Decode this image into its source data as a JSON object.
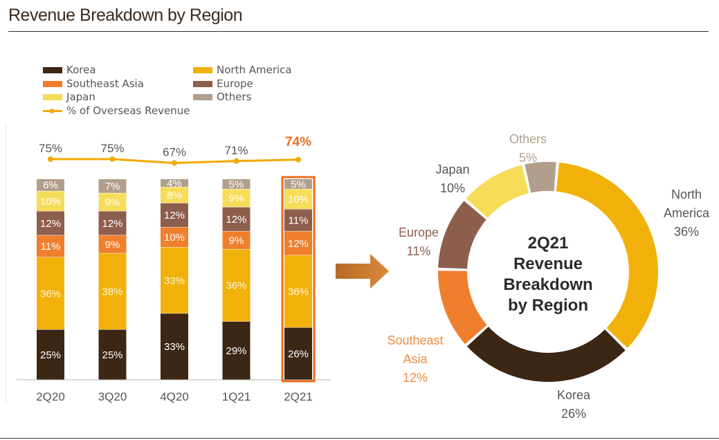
{
  "page": {
    "title": "Revenue Breakdown by Region"
  },
  "legend": [
    {
      "label": "Korea",
      "color": "#3c2614",
      "kind": "box"
    },
    {
      "label": "North America",
      "color": "#f2b10a",
      "kind": "box"
    },
    {
      "label": "Southeast Asia",
      "color": "#ef7f2d",
      "kind": "box"
    },
    {
      "label": "Europe",
      "color": "#8e5e4d",
      "kind": "box"
    },
    {
      "label": "Japan",
      "color": "#f7dc5a",
      "kind": "box"
    },
    {
      "label": "Others",
      "color": "#b19e8c",
      "kind": "box"
    },
    {
      "label": "% of Overseas Revenue",
      "color": "#f2a900",
      "kind": "line"
    }
  ],
  "chart_data": [
    {
      "type": "bar",
      "stacked": true,
      "categories": [
        "2Q20",
        "3Q20",
        "4Q20",
        "1Q21",
        "2Q21"
      ],
      "series": [
        {
          "name": "Korea",
          "values": [
            25,
            25,
            33,
            29,
            26
          ],
          "labels": [
            "25%",
            "25%",
            "33%",
            "29%",
            "26%"
          ],
          "color": "#3c2614",
          "label_color": "#ffffff"
        },
        {
          "name": "North America",
          "values": [
            36,
            38,
            33,
            36,
            36
          ],
          "labels": [
            "36%",
            "38%",
            "33%",
            "36%",
            "36%"
          ],
          "color": "#f2b10a",
          "label_color": "#fff6d8"
        },
        {
          "name": "Southeast Asia",
          "values": [
            11,
            9,
            10,
            9,
            12
          ],
          "labels": [
            "11%",
            "9%",
            "10%",
            "9%",
            "12%"
          ],
          "color": "#ef7f2d",
          "label_color": "#ffffff"
        },
        {
          "name": "Europe",
          "values": [
            12,
            12,
            12,
            12,
            11
          ],
          "labels": [
            "12%",
            "12%",
            "12%",
            "12%",
            "11%"
          ],
          "color": "#8e5e4d",
          "label_color": "#ffffff"
        },
        {
          "name": "Japan",
          "values": [
            10,
            9,
            8,
            9,
            10
          ],
          "labels": [
            "10%",
            "9%",
            "8%",
            "9%",
            "10%"
          ],
          "color": "#f7dc5a",
          "label_color": "#ffffff"
        },
        {
          "name": "Others",
          "values": [
            6,
            7,
            4,
            5,
            5
          ],
          "labels": [
            "6%",
            "7%",
            "4%",
            "5%",
            "5%"
          ],
          "color": "#b19e8c",
          "label_color": "#ffffff"
        }
      ],
      "line_series": {
        "name": "% of Overseas Revenue",
        "values": [
          75,
          75,
          67,
          71,
          74
        ],
        "labels": [
          "75%",
          "75%",
          "67%",
          "71%",
          "74%"
        ],
        "color": "#f2a900"
      },
      "highlight": {
        "category": "2Q21",
        "color": "#ef6c1a"
      },
      "ylim": [
        0,
        100
      ]
    },
    {
      "type": "pie",
      "donut": true,
      "center_text": [
        "2Q21",
        "Revenue",
        "Breakdown",
        "by Region"
      ],
      "slices": [
        {
          "name": "North America",
          "name_lines": [
            "North",
            "America"
          ],
          "value": 36,
          "value_label": "36%",
          "color": "#f2b10a",
          "text_color": "#555555"
        },
        {
          "name": "Korea",
          "name_lines": [
            "Korea"
          ],
          "value": 26,
          "value_label": "26%",
          "color": "#3c2614",
          "text_color": "#555555"
        },
        {
          "name": "Southeast Asia",
          "name_lines": [
            "Southeast",
            "Asia"
          ],
          "value": 12,
          "value_label": "12%",
          "color": "#ef7f2d",
          "text_color": "#ef8a44"
        },
        {
          "name": "Europe",
          "name_lines": [
            "Europe"
          ],
          "value": 11,
          "value_label": "11%",
          "color": "#8e5e4d",
          "text_color": "#8e5e4d"
        },
        {
          "name": "Japan",
          "name_lines": [
            "Japan"
          ],
          "value": 10,
          "value_label": "10%",
          "color": "#f7dc5a",
          "text_color": "#555555"
        },
        {
          "name": "Others",
          "name_lines": [
            "Others"
          ],
          "value": 5,
          "value_label": "5%",
          "color": "#b19e8c",
          "text_color": "#b0a090"
        }
      ]
    }
  ],
  "colors": {
    "accent": "#ef6c1a",
    "arrow": "#c8762a",
    "text": "#555555"
  }
}
